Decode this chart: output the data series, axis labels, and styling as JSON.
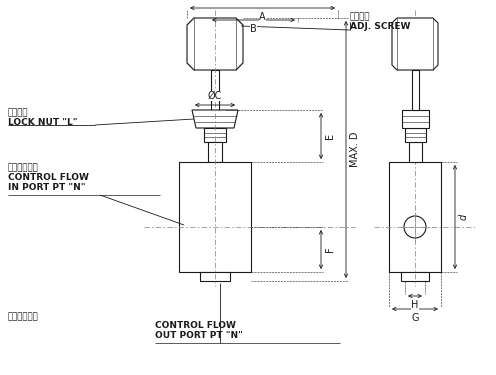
{
  "bg_color": "#ffffff",
  "line_color": "#1a1a1a",
  "fig_width": 4.96,
  "fig_height": 3.75,
  "dpi": 100,
  "labels": {
    "adj_screw_zh": "調節螺絲",
    "adj_screw_en": "ADJ. SCREW",
    "lock_nut_zh": "固定螺帽",
    "lock_nut_en": "LOCK NUT \"L\"",
    "control_flow_in_zh": "控制油流入口",
    "control_flow_in_en": "CONTROL FLOW",
    "in_port": "IN PORT PT \"N\"",
    "control_flow_out_zh": "控制油流出口",
    "control_flow_out_en": "CONTROL FLOW",
    "out_port": "OUT PORT PT \"N\""
  }
}
